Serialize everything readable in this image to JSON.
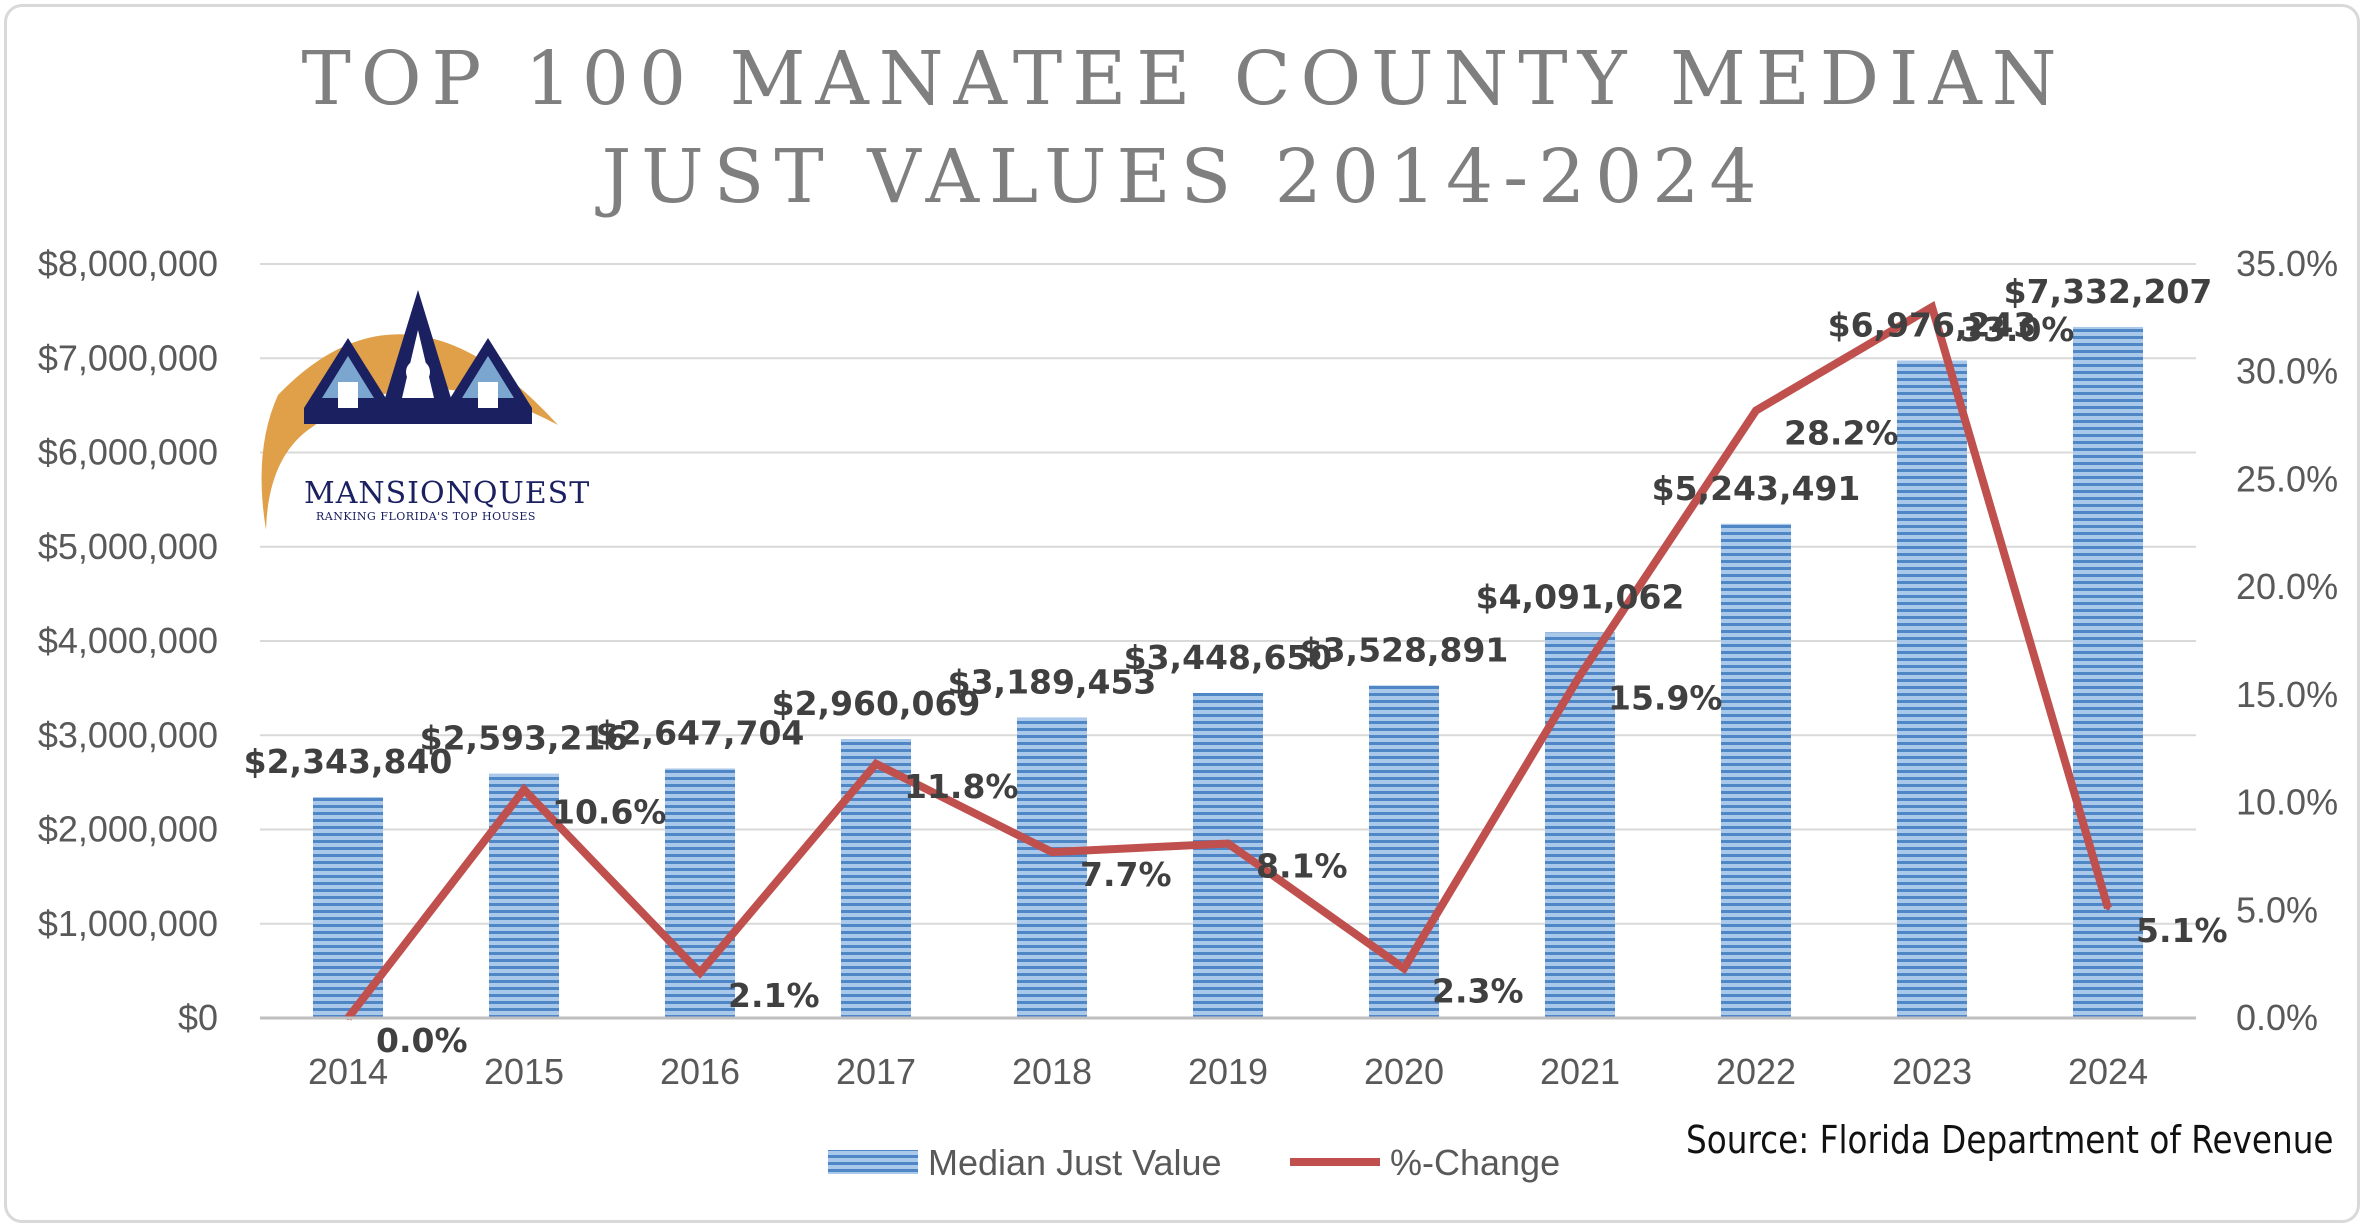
{
  "title_lines": [
    "TOP 100 MANATEE COUNTY MEDIAN",
    "JUST VALUES 2014-2024"
  ],
  "source": "Source: Florida Department of Revenue",
  "logo": {
    "name": "MANSIONQUEST",
    "tagline": "RANKING FLORIDA'S TOP HOUSES"
  },
  "chart_data": {
    "type": "bar",
    "title": "TOP 100 MANATEE COUNTY MEDIAN JUST VALUES 2014-2024",
    "categories": [
      "2014",
      "2015",
      "2016",
      "2017",
      "2018",
      "2019",
      "2020",
      "2021",
      "2022",
      "2023",
      "2024"
    ],
    "series": [
      {
        "name": "Median Just Value",
        "type": "bar",
        "axis": "left",
        "color": "#5b9bd5",
        "values": [
          2343840,
          2593216,
          2647704,
          2960069,
          3189453,
          3448650,
          3528891,
          4091062,
          5243491,
          6976243,
          7332207
        ],
        "labels": [
          "$2,343,840",
          "$2,593,216",
          "$2,647,704",
          "$2,960,069",
          "$3,189,453",
          "$3,448,650",
          "$3,528,891",
          "$4,091,062",
          "$5,243,491",
          "$6,976,243",
          "$7,332,207"
        ]
      },
      {
        "name": "%-Change",
        "type": "line",
        "axis": "right",
        "color": "#c0504d",
        "values": [
          0.0,
          10.6,
          2.1,
          11.8,
          7.7,
          8.1,
          2.3,
          15.9,
          28.2,
          33.0,
          5.1
        ],
        "labels": [
          "0.0%",
          "10.6%",
          "2.1%",
          "11.8%",
          "7.7%",
          "8.1%",
          "2.3%",
          "15.9%",
          "28.2%",
          "33.0%",
          "5.1%"
        ]
      }
    ],
    "y_left": {
      "min": 0,
      "max": 8000000,
      "step": 1000000,
      "ticks": [
        "$0",
        "$1,000,000",
        "$2,000,000",
        "$3,000,000",
        "$4,000,000",
        "$5,000,000",
        "$6,000,000",
        "$7,000,000",
        "$8,000,000"
      ]
    },
    "y_right": {
      "min": 0,
      "max": 35,
      "step": 5,
      "ticks": [
        "0.0%",
        "5.0%",
        "10.0%",
        "15.0%",
        "20.0%",
        "25.0%",
        "30.0%",
        "35.0%"
      ]
    },
    "grid": true,
    "legend_position": "bottom"
  }
}
